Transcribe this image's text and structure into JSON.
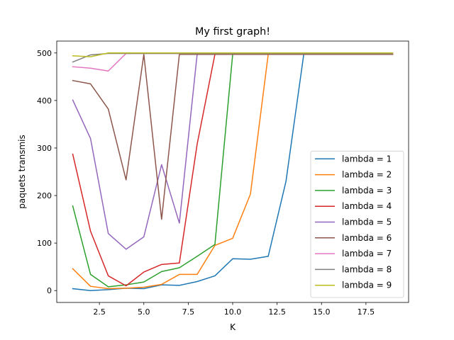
{
  "chart_data": {
    "type": "line",
    "title": "My first graph!",
    "xlabel": "K",
    "ylabel": "paquets transmis",
    "xlim": [
      0.1,
      19.9
    ],
    "ylim": [
      -25,
      525
    ],
    "xticks": [
      2.5,
      5.0,
      7.5,
      10.0,
      12.5,
      15.0,
      17.5
    ],
    "xtick_labels": [
      "2.5",
      "5.0",
      "7.5",
      "10.0",
      "12.5",
      "15.0",
      "17.5"
    ],
    "yticks": [
      0,
      100,
      200,
      300,
      400,
      500
    ],
    "ytick_labels": [
      "0",
      "100",
      "200",
      "300",
      "400",
      "500"
    ],
    "grid": false,
    "legend_position": "lower-right",
    "x": [
      1,
      2,
      3,
      4,
      5,
      6,
      7,
      8,
      9,
      10,
      11,
      12,
      13,
      14,
      15,
      16,
      17,
      18,
      19
    ],
    "series": [
      {
        "name": "lambda = 1",
        "color": "#1f77b4",
        "values": [
          4,
          0,
          2,
          5,
          4,
          12,
          11,
          19,
          31,
          67,
          66,
          72,
          230,
          497,
          497,
          497,
          497,
          497,
          497
        ]
      },
      {
        "name": "lambda = 2",
        "color": "#ff7f0e",
        "values": [
          46,
          9,
          4,
          5,
          7,
          13,
          34,
          34,
          95,
          110,
          203,
          497,
          497,
          497,
          497,
          497,
          497,
          497,
          497
        ]
      },
      {
        "name": "lambda = 3",
        "color": "#2ca02c",
        "values": [
          178,
          34,
          8,
          12,
          18,
          40,
          48,
          72,
          97,
          497,
          497,
          497,
          497,
          497,
          497,
          497,
          497,
          497,
          497
        ]
      },
      {
        "name": "lambda = 4",
        "color": "#d62728",
        "values": [
          287,
          125,
          31,
          10,
          39,
          55,
          58,
          308,
          497,
          497,
          497,
          497,
          497,
          497,
          497,
          497,
          497,
          497,
          497
        ]
      },
      {
        "name": "lambda = 5",
        "color": "#9467bd",
        "values": [
          401,
          320,
          120,
          87,
          113,
          265,
          142,
          497,
          497,
          497,
          497,
          497,
          497,
          497,
          497,
          497,
          497,
          497,
          497
        ]
      },
      {
        "name": "lambda = 6",
        "color": "#8c564b",
        "values": [
          442,
          435,
          382,
          233,
          497,
          150,
          497,
          497,
          497,
          497,
          497,
          497,
          497,
          497,
          497,
          497,
          497,
          497,
          497
        ]
      },
      {
        "name": "lambda = 7",
        "color": "#e377c2",
        "values": [
          471,
          468,
          462,
          499,
          499,
          499,
          499,
          499,
          499,
          499,
          499,
          499,
          499,
          499,
          499,
          499,
          499,
          499,
          499
        ]
      },
      {
        "name": "lambda = 8",
        "color": "#7f7f7f",
        "values": [
          481,
          496,
          499,
          499,
          499,
          499,
          499,
          499,
          499,
          499,
          499,
          499,
          499,
          499,
          499,
          499,
          499,
          499,
          499
        ]
      },
      {
        "name": "lambda = 9",
        "color": "#bcbd22",
        "values": [
          494,
          492,
          500,
          500,
          500,
          500,
          500,
          500,
          500,
          500,
          500,
          500,
          500,
          500,
          500,
          500,
          500,
          500,
          500
        ]
      }
    ]
  }
}
